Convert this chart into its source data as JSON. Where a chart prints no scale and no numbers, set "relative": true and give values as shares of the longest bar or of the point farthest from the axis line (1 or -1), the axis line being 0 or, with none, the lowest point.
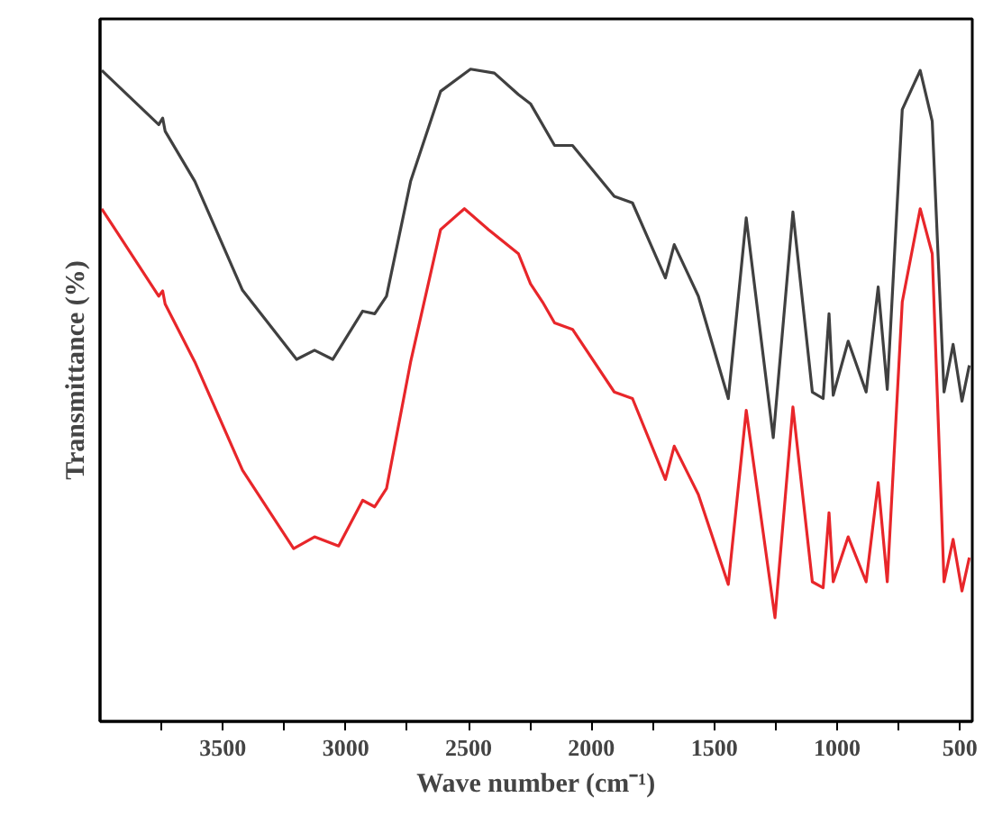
{
  "chart_data": {
    "type": "line",
    "relative": true,
    "xlabel": "Wave number (cm⁻¹)",
    "ylabel": "Transmittance (%)",
    "xlim": [
      4000,
      450
    ],
    "xticks": [
      {
        "value": 3750,
        "label": null
      },
      3500,
      {
        "value": 3250,
        "label": null
      },
      3000,
      {
        "value": 2750,
        "label": null
      },
      2500,
      {
        "value": 2250,
        "label": null
      },
      2000,
      {
        "value": 1750,
        "label": null
      },
      1500,
      {
        "value": 1250,
        "label": null
      },
      1000,
      {
        "value": 750,
        "label": null
      },
      500
    ],
    "grid": false,
    "line_style": "solid",
    "marker": "none",
    "series": [
      {
        "color": "#404040",
        "x": [
          3993,
          3761,
          3745,
          3735,
          3614,
          3420,
          3200,
          3127,
          3053,
          2931,
          2882,
          2834,
          2736,
          2614,
          2492,
          2395,
          2297,
          2248,
          2150,
          2077,
          1907,
          1833,
          1699,
          1663,
          1565,
          1443,
          1370,
          1260,
          1180,
          1101,
          1057,
          1033,
          1016,
          955,
          882,
          833,
          796,
          735,
          662,
          613,
          565,
          528,
          492,
          462
        ],
        "values": [
          0.998,
          0.915,
          0.925,
          0.905,
          0.828,
          0.661,
          0.555,
          0.569,
          0.555,
          0.629,
          0.625,
          0.652,
          0.828,
          0.966,
          1.0,
          0.994,
          0.961,
          0.947,
          0.883,
          0.883,
          0.805,
          0.795,
          0.68,
          0.731,
          0.652,
          0.495,
          0.772,
          0.435,
          0.781,
          0.505,
          0.495,
          0.625,
          0.5,
          0.583,
          0.505,
          0.666,
          0.509,
          0.938,
          0.998,
          0.92,
          0.505,
          0.578,
          0.491,
          0.546
        ]
      },
      {
        "color": "#e8262a",
        "x": [
          3993,
          3761,
          3745,
          3735,
          3614,
          3420,
          3212,
          3127,
          3029,
          2931,
          2882,
          2834,
          2736,
          2614,
          2517,
          2419,
          2297,
          2248,
          2199,
          2150,
          2077,
          1907,
          1833,
          1699,
          1663,
          1565,
          1443,
          1370,
          1253,
          1180,
          1101,
          1057,
          1033,
          1016,
          955,
          882,
          833,
          796,
          735,
          662,
          613,
          565,
          528,
          492,
          462
        ],
        "values": [
          0.786,
          0.652,
          0.66,
          0.64,
          0.551,
          0.385,
          0.265,
          0.283,
          0.269,
          0.339,
          0.329,
          0.357,
          0.551,
          0.754,
          0.786,
          0.754,
          0.717,
          0.671,
          0.643,
          0.611,
          0.601,
          0.505,
          0.495,
          0.371,
          0.422,
          0.348,
          0.21,
          0.477,
          0.159,
          0.482,
          0.214,
          0.205,
          0.32,
          0.214,
          0.283,
          0.214,
          0.366,
          0.214,
          0.643,
          0.786,
          0.717,
          0.214,
          0.279,
          0.2,
          0.251
        ]
      }
    ]
  }
}
